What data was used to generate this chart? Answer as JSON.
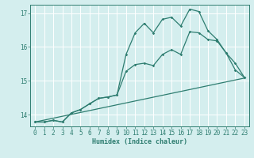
{
  "xlabel": "Humidex (Indice chaleur)",
  "bg_color": "#d4eeee",
  "line_color": "#2e7d70",
  "grid_color": "#b8d8d8",
  "xlim": [
    -0.5,
    23.5
  ],
  "ylim": [
    13.65,
    17.25
  ],
  "xticks": [
    0,
    1,
    2,
    3,
    4,
    5,
    6,
    7,
    8,
    9,
    10,
    11,
    12,
    13,
    14,
    15,
    16,
    17,
    18,
    19,
    20,
    21,
    22,
    23
  ],
  "yticks": [
    14,
    15,
    16,
    17
  ],
  "line1_x": [
    0,
    1,
    2,
    3,
    4,
    5,
    6,
    7,
    8,
    9,
    10,
    11,
    12,
    13,
    14,
    15,
    16,
    17,
    18,
    19,
    20,
    21,
    22,
    23
  ],
  "line1_y": [
    13.78,
    13.78,
    13.83,
    13.78,
    14.05,
    14.15,
    14.32,
    14.48,
    14.52,
    14.58,
    15.78,
    16.42,
    16.7,
    16.42,
    16.82,
    16.88,
    16.62,
    17.12,
    17.05,
    16.48,
    16.22,
    15.82,
    15.32,
    15.1
  ],
  "line2_x": [
    0,
    1,
    2,
    3,
    4,
    5,
    6,
    7,
    8,
    9,
    10,
    11,
    12,
    13,
    14,
    15,
    16,
    17,
    18,
    19,
    20,
    21,
    22,
    23
  ],
  "line2_y": [
    13.78,
    13.78,
    13.83,
    13.78,
    14.05,
    14.15,
    14.32,
    14.48,
    14.52,
    14.58,
    15.28,
    15.48,
    15.52,
    15.45,
    15.78,
    15.92,
    15.78,
    16.45,
    16.42,
    16.22,
    16.18,
    15.82,
    15.52,
    15.1
  ],
  "line3_x": [
    0,
    23
  ],
  "line3_y": [
    13.78,
    15.08
  ],
  "tick_fontsize": 5.5,
  "xlabel_fontsize": 6.0
}
